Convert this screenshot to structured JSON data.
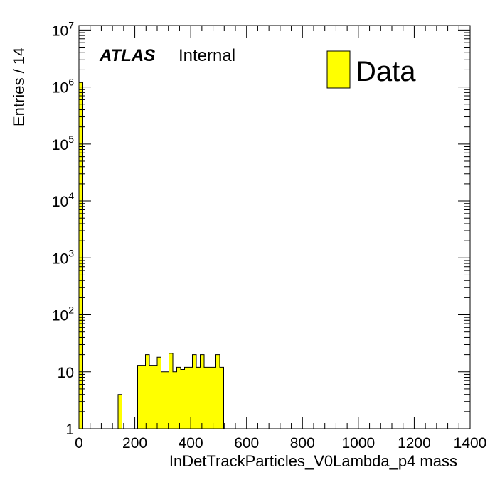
{
  "chart_data": {
    "type": "bar",
    "xlabel": "InDetTrackParticles_V0Lambda_p4 mass",
    "ylabel": "Entries / 14",
    "xlim": [
      0,
      1400
    ],
    "ylim": [
      1,
      12000000
    ],
    "yscale": "log",
    "bin_width": 14,
    "x_ticks": [
      "0",
      "200",
      "400",
      "600",
      "800",
      "1000",
      "1200",
      "1400"
    ],
    "y_ticks": [
      {
        "value": 1,
        "base": "1",
        "exp": ""
      },
      {
        "value": 10,
        "base": "10",
        "exp": ""
      },
      {
        "value": 100,
        "base": "10",
        "exp": "2"
      },
      {
        "value": 1000,
        "base": "10",
        "exp": "3"
      },
      {
        "value": 10000,
        "base": "10",
        "exp": "4"
      },
      {
        "value": 100000,
        "base": "10",
        "exp": "5"
      },
      {
        "value": 1000000,
        "base": "10",
        "exp": "6"
      },
      {
        "value": 10000000,
        "base": "10",
        "exp": "7"
      }
    ],
    "label_main": "ATLAS",
    "label_sub": "Internal",
    "series": [
      {
        "name": "Data",
        "color": "#ffff00",
        "bin_edges": [
          0,
          14,
          28,
          42,
          56,
          70,
          84,
          98,
          112,
          126,
          140,
          154,
          168,
          182,
          196,
          210,
          224,
          238,
          252,
          266,
          280,
          294,
          308,
          322,
          336,
          350,
          364,
          378,
          392,
          406,
          420,
          434,
          448,
          462,
          476,
          490,
          504,
          518,
          532,
          546,
          560,
          574,
          588,
          602,
          616,
          630,
          644,
          658,
          672,
          686,
          700,
          714,
          728,
          742,
          756,
          770,
          784,
          798,
          812,
          826,
          840,
          854,
          868,
          882,
          896,
          910,
          924,
          938,
          952,
          966,
          980,
          994,
          1008,
          1022,
          1036,
          1050
        ],
        "values": [
          1200000,
          1,
          1,
          0,
          0,
          0,
          0,
          0,
          0,
          0,
          4,
          0,
          1,
          0,
          1,
          13,
          13,
          20,
          13,
          13,
          18,
          10,
          10,
          21,
          10,
          12,
          11,
          12,
          12,
          20,
          12,
          20,
          12,
          12,
          12,
          20,
          12,
          0,
          0,
          0,
          0,
          0,
          0,
          0,
          0,
          0,
          0,
          0,
          0,
          0,
          0,
          0,
          0,
          0,
          0,
          0,
          0,
          0,
          0,
          0,
          0,
          0,
          0,
          0,
          0,
          0,
          0,
          0,
          0,
          0,
          0,
          0,
          0,
          0,
          0
        ],
        "note": ""
      }
    ]
  }
}
